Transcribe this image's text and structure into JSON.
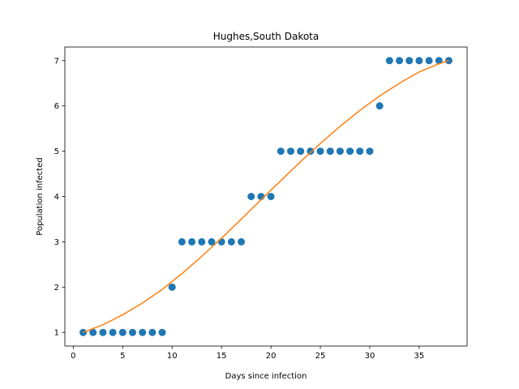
{
  "chart_data": {
    "type": "scatter",
    "title": "Hughes,South Dakota",
    "xlabel": "Days since infection",
    "ylabel": "Population infected",
    "xlim": [
      -0.85,
      39.85
    ],
    "ylim": [
      0.7,
      7.3
    ],
    "xticks": [
      0,
      5,
      10,
      15,
      20,
      25,
      30,
      35
    ],
    "yticks": [
      1,
      2,
      3,
      4,
      5,
      6,
      7
    ],
    "grid": false,
    "colors": {
      "scatter": "#1f77b4",
      "fit": "#ff7f0e"
    },
    "series": [
      {
        "type": "scatter",
        "x": [
          1,
          2,
          3,
          4,
          5,
          6,
          7,
          8,
          9,
          10,
          11,
          12,
          13,
          14,
          15,
          16,
          17,
          18,
          19,
          20,
          21,
          22,
          23,
          24,
          25,
          26,
          27,
          28,
          29,
          30,
          31,
          32,
          33,
          34,
          35,
          36,
          37,
          38
        ],
        "y": [
          1,
          1,
          1,
          1,
          1,
          1,
          1,
          1,
          1,
          2,
          3,
          3,
          3,
          3,
          3,
          3,
          3,
          4,
          4,
          4,
          5,
          5,
          5,
          5,
          5,
          5,
          5,
          5,
          5,
          5,
          6,
          7,
          7,
          7,
          7,
          7,
          7,
          7
        ]
      },
      {
        "type": "line",
        "x": [
          1,
          3,
          5,
          7,
          9,
          11,
          13,
          15,
          17,
          19,
          21,
          23,
          25,
          27,
          29,
          31,
          33,
          35,
          37,
          38
        ],
        "y": [
          1.0,
          1.17,
          1.39,
          1.65,
          1.95,
          2.3,
          2.68,
          3.08,
          3.5,
          3.93,
          4.35,
          4.77,
          5.17,
          5.55,
          5.9,
          6.22,
          6.5,
          6.75,
          6.93,
          7.0
        ]
      }
    ]
  }
}
